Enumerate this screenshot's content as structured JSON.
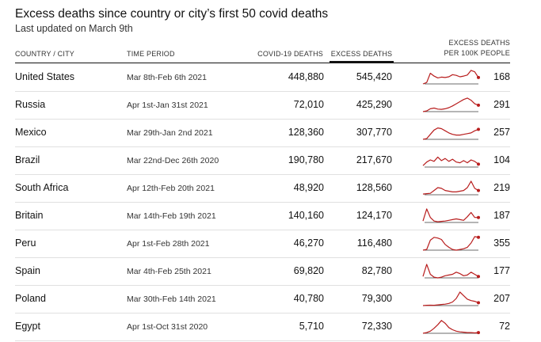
{
  "title": "Excess deaths since country or city’s first 50 covid deaths",
  "subtitle": "Last updated on March 9th",
  "headers": {
    "country": "COUNTRY / CITY",
    "period": "TIME PERIOD",
    "covid": "COVID-19 DEATHS",
    "excess": "EXCESS DEATHS",
    "per_line1": "EXCESS DEATHS",
    "per_line2": "PER 100K PEOPLE"
  },
  "colors": {
    "sparkline": "#b81d1d",
    "baseline": "#6b6b6b",
    "sort_underline": "#121212"
  },
  "chart_data": {
    "type": "table",
    "sorted_by": "EXCESS DEATHS",
    "columns": [
      "COUNTRY / CITY",
      "TIME PERIOD",
      "COVID-19 DEATHS",
      "EXCESS DEATHS",
      "EXCESS DEATHS PER 100K PEOPLE"
    ],
    "rows": [
      {
        "country": "United States",
        "period": "Mar 8th-Feb 6th 2021",
        "covid": "448,880",
        "excess": "545,420",
        "per100k": "168",
        "trend": [
          0,
          0.1,
          0.75,
          0.55,
          0.42,
          0.48,
          0.45,
          0.5,
          0.65,
          0.6,
          0.5,
          0.55,
          0.62,
          0.95,
          0.85,
          0.45
        ]
      },
      {
        "country": "Russia",
        "period": "Apr 1st-Jan 31st 2021",
        "covid": "72,010",
        "excess": "425,290",
        "per100k": "291",
        "trend": [
          0,
          0.05,
          0.2,
          0.25,
          0.18,
          0.16,
          0.2,
          0.28,
          0.4,
          0.55,
          0.7,
          0.85,
          0.95,
          0.8,
          0.55,
          0.45
        ]
      },
      {
        "country": "Mexico",
        "period": "Mar 29th-Jan 2nd 2021",
        "covid": "128,360",
        "excess": "307,770",
        "per100k": "257",
        "trend": [
          0,
          0.05,
          0.35,
          0.65,
          0.8,
          0.75,
          0.6,
          0.45,
          0.35,
          0.3,
          0.3,
          0.35,
          0.4,
          0.45,
          0.6,
          0.7
        ]
      },
      {
        "country": "Brazil",
        "period": "Mar 22nd-Dec 26th 2020",
        "covid": "190,780",
        "excess": "217,670",
        "per100k": "104",
        "trend": [
          0.1,
          0.35,
          0.5,
          0.4,
          0.7,
          0.45,
          0.6,
          0.4,
          0.55,
          0.35,
          0.3,
          0.45,
          0.3,
          0.5,
          0.4,
          0.2
        ]
      },
      {
        "country": "South Africa",
        "period": "Apr 12th-Feb 20th 2021",
        "covid": "48,920",
        "excess": "128,560",
        "per100k": "219",
        "trend": [
          0.05,
          0.08,
          0.1,
          0.3,
          0.5,
          0.45,
          0.3,
          0.25,
          0.2,
          0.2,
          0.25,
          0.3,
          0.5,
          0.95,
          0.45,
          0.3
        ]
      },
      {
        "country": "Britain",
        "period": "Mar 14th-Feb 19th 2021",
        "covid": "140,160",
        "excess": "124,170",
        "per100k": "187",
        "trend": [
          0.1,
          0.95,
          0.35,
          0.1,
          0.05,
          0.08,
          0.1,
          0.15,
          0.2,
          0.25,
          0.2,
          0.15,
          0.4,
          0.7,
          0.35,
          0.35
        ]
      },
      {
        "country": "Peru",
        "period": "Apr 1st-Feb 28th 2021",
        "covid": "46,270",
        "excess": "116,480",
        "per100k": "355",
        "trend": [
          0,
          0.05,
          0.7,
          0.9,
          0.85,
          0.75,
          0.4,
          0.2,
          0.05,
          0,
          0.05,
          0.1,
          0.2,
          0.5,
          0.95,
          0.9
        ]
      },
      {
        "country": "Spain",
        "period": "Mar 4th-Feb 25th 2021",
        "covid": "69,820",
        "excess": "82,780",
        "per100k": "177",
        "trend": [
          0.1,
          0.95,
          0.25,
          0.05,
          0,
          0.05,
          0.15,
          0.2,
          0.25,
          0.4,
          0.3,
          0.15,
          0.2,
          0.4,
          0.25,
          0.1
        ]
      },
      {
        "country": "Poland",
        "period": "Mar 30th-Feb 14th 2021",
        "covid": "40,780",
        "excess": "79,300",
        "per100k": "207",
        "trend": [
          0,
          0.02,
          0.03,
          0.02,
          0.05,
          0.08,
          0.1,
          0.15,
          0.25,
          0.5,
          0.95,
          0.7,
          0.45,
          0.35,
          0.3,
          0.2
        ]
      },
      {
        "country": "Egypt",
        "period": "Apr 1st-Oct 31st 2020",
        "covid": "5,710",
        "excess": "72,330",
        "per100k": "72",
        "trend": [
          0,
          0.05,
          0.15,
          0.35,
          0.6,
          0.9,
          0.7,
          0.4,
          0.25,
          0.15,
          0.1,
          0.08,
          0.05,
          0.05,
          0.03,
          0.05
        ]
      }
    ]
  }
}
